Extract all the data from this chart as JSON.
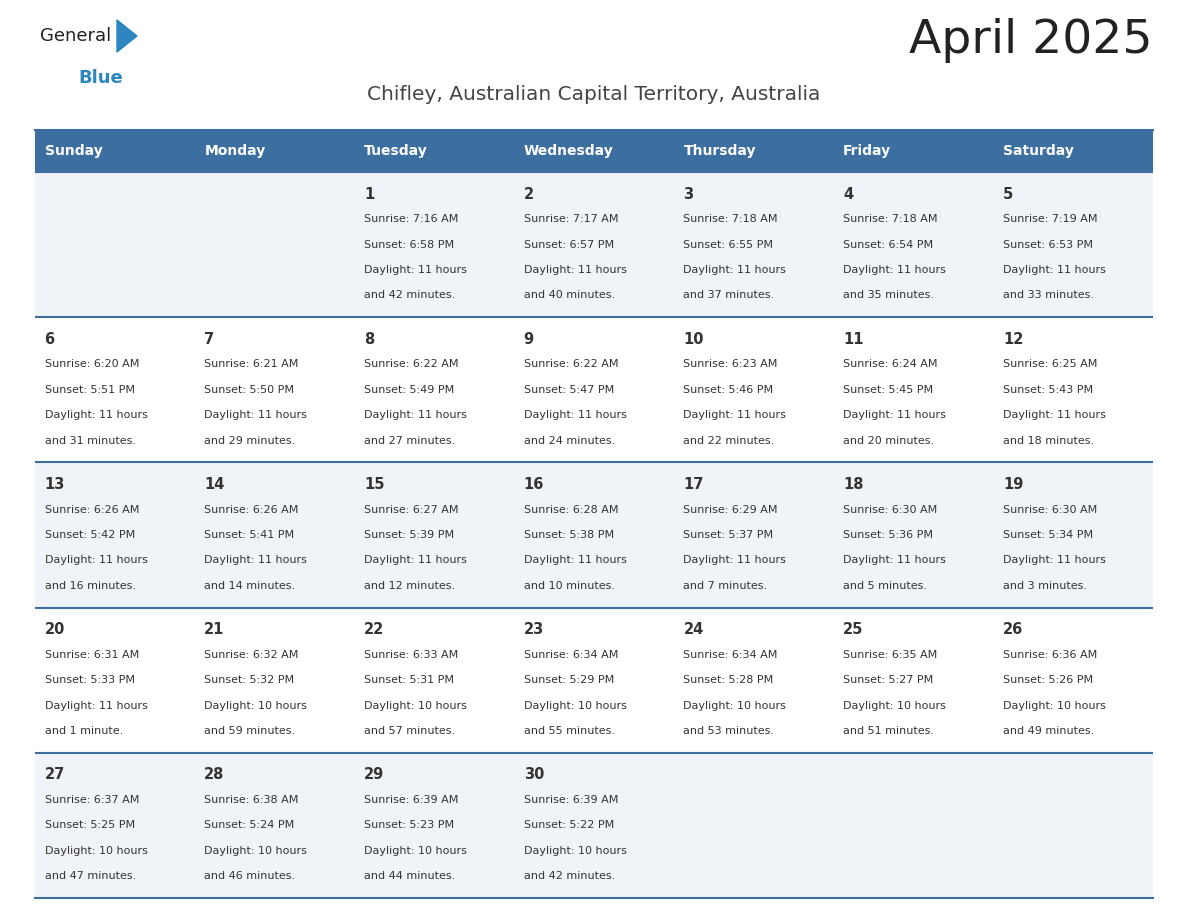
{
  "title": "April 2025",
  "subtitle": "Chifley, Australian Capital Territory, Australia",
  "header_bg_color": "#3C6FA0",
  "header_text_color": "#FFFFFF",
  "day_names": [
    "Sunday",
    "Monday",
    "Tuesday",
    "Wednesday",
    "Thursday",
    "Friday",
    "Saturday"
  ],
  "cell_bg_light": "#F0F4F8",
  "cell_bg_white": "#FFFFFF",
  "separator_color": "#3C6FA0",
  "text_color": "#333333",
  "title_color": "#222222",
  "subtitle_color": "#444444",
  "weeks": [
    [
      {
        "day": null,
        "sunrise": null,
        "sunset": null,
        "daylight": null
      },
      {
        "day": null,
        "sunrise": null,
        "sunset": null,
        "daylight": null
      },
      {
        "day": 1,
        "sunrise": "7:16 AM",
        "sunset": "6:58 PM",
        "daylight": "11 hours and 42 minutes."
      },
      {
        "day": 2,
        "sunrise": "7:17 AM",
        "sunset": "6:57 PM",
        "daylight": "11 hours and 40 minutes."
      },
      {
        "day": 3,
        "sunrise": "7:18 AM",
        "sunset": "6:55 PM",
        "daylight": "11 hours and 37 minutes."
      },
      {
        "day": 4,
        "sunrise": "7:18 AM",
        "sunset": "6:54 PM",
        "daylight": "11 hours and 35 minutes."
      },
      {
        "day": 5,
        "sunrise": "7:19 AM",
        "sunset": "6:53 PM",
        "daylight": "11 hours and 33 minutes."
      }
    ],
    [
      {
        "day": 6,
        "sunrise": "6:20 AM",
        "sunset": "5:51 PM",
        "daylight": "11 hours and 31 minutes."
      },
      {
        "day": 7,
        "sunrise": "6:21 AM",
        "sunset": "5:50 PM",
        "daylight": "11 hours and 29 minutes."
      },
      {
        "day": 8,
        "sunrise": "6:22 AM",
        "sunset": "5:49 PM",
        "daylight": "11 hours and 27 minutes."
      },
      {
        "day": 9,
        "sunrise": "6:22 AM",
        "sunset": "5:47 PM",
        "daylight": "11 hours and 24 minutes."
      },
      {
        "day": 10,
        "sunrise": "6:23 AM",
        "sunset": "5:46 PM",
        "daylight": "11 hours and 22 minutes."
      },
      {
        "day": 11,
        "sunrise": "6:24 AM",
        "sunset": "5:45 PM",
        "daylight": "11 hours and 20 minutes."
      },
      {
        "day": 12,
        "sunrise": "6:25 AM",
        "sunset": "5:43 PM",
        "daylight": "11 hours and 18 minutes."
      }
    ],
    [
      {
        "day": 13,
        "sunrise": "6:26 AM",
        "sunset": "5:42 PM",
        "daylight": "11 hours and 16 minutes."
      },
      {
        "day": 14,
        "sunrise": "6:26 AM",
        "sunset": "5:41 PM",
        "daylight": "11 hours and 14 minutes."
      },
      {
        "day": 15,
        "sunrise": "6:27 AM",
        "sunset": "5:39 PM",
        "daylight": "11 hours and 12 minutes."
      },
      {
        "day": 16,
        "sunrise": "6:28 AM",
        "sunset": "5:38 PM",
        "daylight": "11 hours and 10 minutes."
      },
      {
        "day": 17,
        "sunrise": "6:29 AM",
        "sunset": "5:37 PM",
        "daylight": "11 hours and 7 minutes."
      },
      {
        "day": 18,
        "sunrise": "6:30 AM",
        "sunset": "5:36 PM",
        "daylight": "11 hours and 5 minutes."
      },
      {
        "day": 19,
        "sunrise": "6:30 AM",
        "sunset": "5:34 PM",
        "daylight": "11 hours and 3 minutes."
      }
    ],
    [
      {
        "day": 20,
        "sunrise": "6:31 AM",
        "sunset": "5:33 PM",
        "daylight": "11 hours and 1 minute."
      },
      {
        "day": 21,
        "sunrise": "6:32 AM",
        "sunset": "5:32 PM",
        "daylight": "10 hours and 59 minutes."
      },
      {
        "day": 22,
        "sunrise": "6:33 AM",
        "sunset": "5:31 PM",
        "daylight": "10 hours and 57 minutes."
      },
      {
        "day": 23,
        "sunrise": "6:34 AM",
        "sunset": "5:29 PM",
        "daylight": "10 hours and 55 minutes."
      },
      {
        "day": 24,
        "sunrise": "6:34 AM",
        "sunset": "5:28 PM",
        "daylight": "10 hours and 53 minutes."
      },
      {
        "day": 25,
        "sunrise": "6:35 AM",
        "sunset": "5:27 PM",
        "daylight": "10 hours and 51 minutes."
      },
      {
        "day": 26,
        "sunrise": "6:36 AM",
        "sunset": "5:26 PM",
        "daylight": "10 hours and 49 minutes."
      }
    ],
    [
      {
        "day": 27,
        "sunrise": "6:37 AM",
        "sunset": "5:25 PM",
        "daylight": "10 hours and 47 minutes."
      },
      {
        "day": 28,
        "sunrise": "6:38 AM",
        "sunset": "5:24 PM",
        "daylight": "10 hours and 46 minutes."
      },
      {
        "day": 29,
        "sunrise": "6:39 AM",
        "sunset": "5:23 PM",
        "daylight": "10 hours and 44 minutes."
      },
      {
        "day": 30,
        "sunrise": "6:39 AM",
        "sunset": "5:22 PM",
        "daylight": "10 hours and 42 minutes."
      },
      {
        "day": null,
        "sunrise": null,
        "sunset": null,
        "daylight": null
      },
      {
        "day": null,
        "sunrise": null,
        "sunset": null,
        "daylight": null
      },
      {
        "day": null,
        "sunrise": null,
        "sunset": null,
        "daylight": null
      }
    ]
  ],
  "logo_text1": "General",
  "logo_text2": "Blue",
  "logo_color1": "#222222",
  "logo_color2": "#2E86C1",
  "logo_triangle_color": "#2E86C1"
}
